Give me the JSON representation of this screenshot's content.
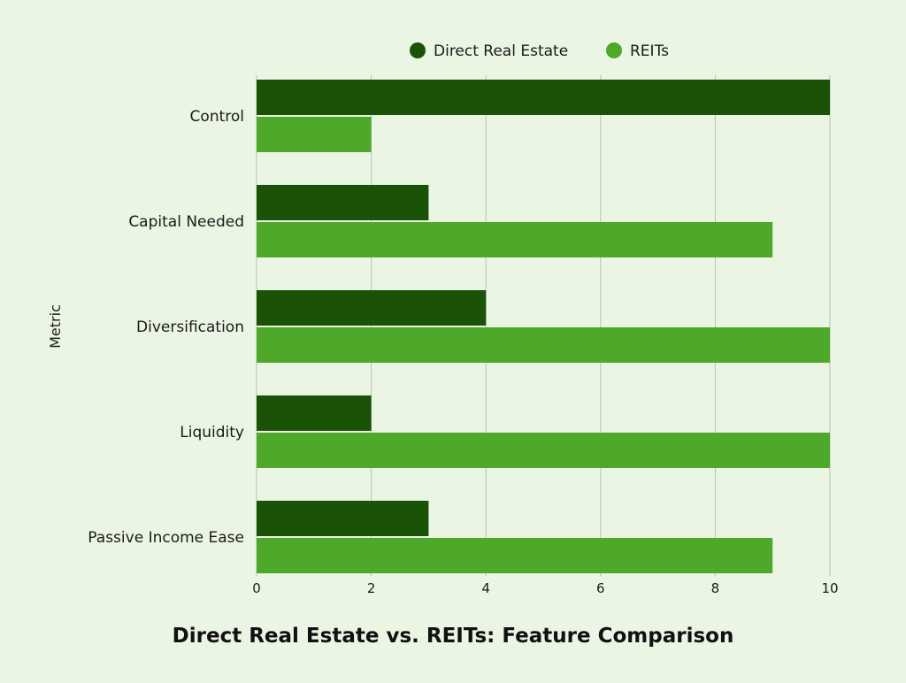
{
  "chart_data": {
    "type": "bar",
    "orientation": "horizontal",
    "title": "Direct Real Estate vs. REITs: Feature Comparison",
    "xlabel": "",
    "ylabel": "Metric",
    "categories": [
      "Control",
      "Capital Needed",
      "Diversification",
      "Liquidity",
      "Passive Income Ease"
    ],
    "series": [
      {
        "name": "Direct Real Estate",
        "color": "#1a5208",
        "values": [
          10,
          3,
          4,
          2,
          3
        ]
      },
      {
        "name": "REITs",
        "color": "#4ea82a",
        "values": [
          2,
          9,
          10,
          10,
          9
        ]
      }
    ],
    "xlim": [
      0,
      10
    ],
    "xticks": [
      0,
      2,
      4,
      6,
      8,
      10
    ],
    "grid": true,
    "legend_position": "top-center"
  }
}
